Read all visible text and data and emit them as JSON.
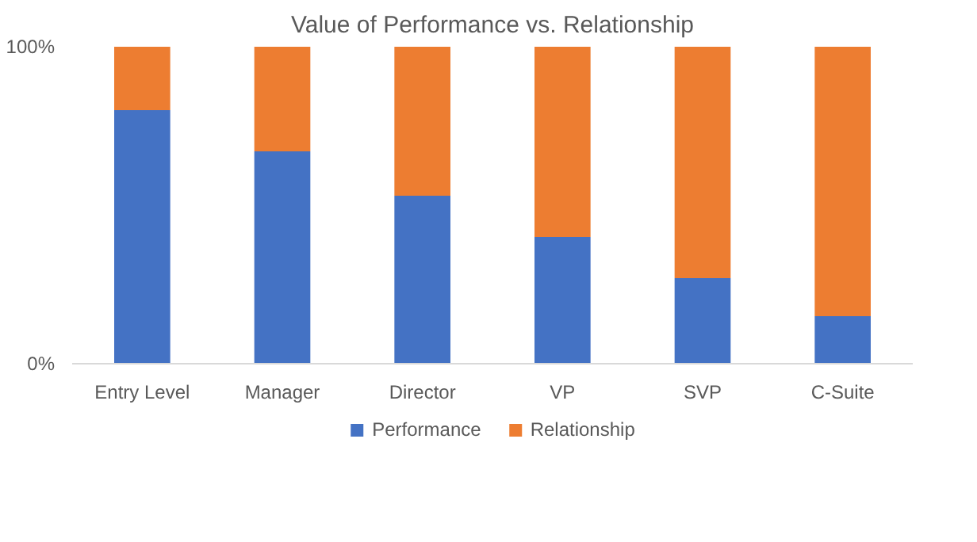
{
  "chart_data": {
    "type": "bar",
    "title": "Value of Performance vs. Relationship",
    "categories": [
      "Entry Level",
      "Manager",
      "Director",
      "VP",
      "SVP",
      "C-Suite"
    ],
    "stacked": true,
    "series": [
      {
        "name": "Performance",
        "color": "#4472c4",
        "values": [
          80,
          67,
          53,
          40,
          27,
          15
        ]
      },
      {
        "name": "Relationship",
        "color": "#ed7d31",
        "values": [
          20,
          33,
          47,
          60,
          73,
          85
        ]
      }
    ],
    "ylim": [
      0,
      100
    ],
    "yticks": [
      {
        "value": 0,
        "label": "0%"
      },
      {
        "value": 100,
        "label": "100%"
      }
    ],
    "legend": "bottom"
  }
}
